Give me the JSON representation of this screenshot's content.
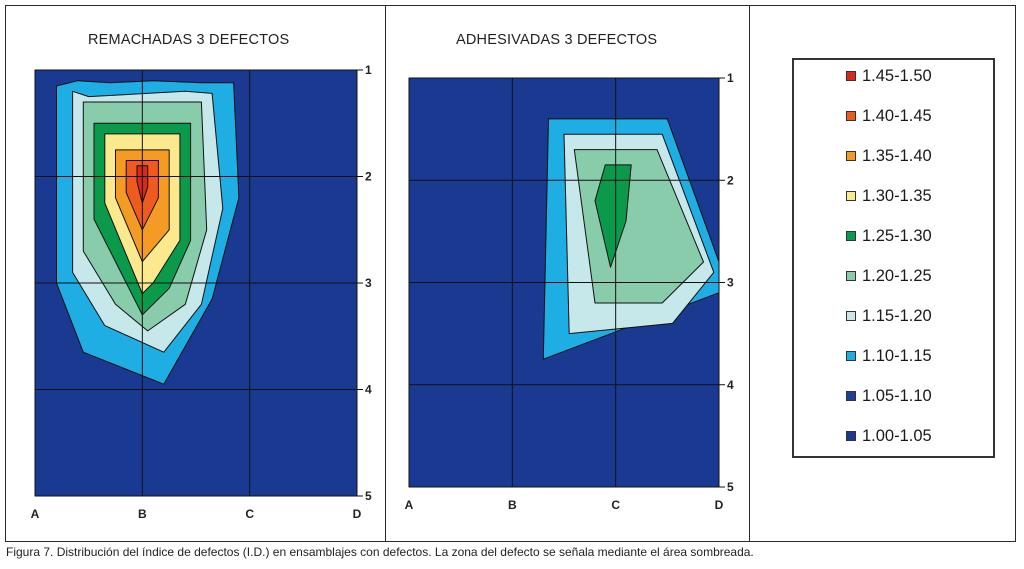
{
  "chart_data": [
    {
      "type": "contour",
      "title": "REMACHADAS 3 DEFECTOS",
      "x_ticks": [
        "A",
        "B",
        "C",
        "D"
      ],
      "y_ticks": [
        "1",
        "2",
        "3",
        "4",
        "5"
      ],
      "xlim": [
        "A",
        "D"
      ],
      "ylim": [
        "1",
        "5"
      ],
      "grid": true,
      "contours": [
        {
          "level": "1.05-1.10",
          "x": [
            0.0,
            3.0,
            3.0,
            0.0,
            0.0,
            1.0,
            0.0
          ],
          "y": [
            1.0,
            1.0,
            5.0,
            5.0,
            4.0,
            4.0,
            4.0
          ]
        },
        {
          "level": "1.10-1.15",
          "x": [
            0.2,
            0.4,
            0.7,
            1.1,
            1.55,
            1.85,
            1.9,
            1.65,
            1.2,
            0.45,
            0.2
          ],
          "y": [
            1.15,
            1.1,
            1.12,
            1.1,
            1.12,
            1.12,
            2.2,
            3.15,
            3.95,
            3.65,
            3.0
          ]
        },
        {
          "level": "1.15-1.20",
          "x": [
            0.35,
            0.5,
            1.4,
            1.65,
            1.75,
            1.55,
            1.2,
            0.65,
            0.35
          ],
          "y": [
            1.2,
            1.25,
            1.2,
            1.22,
            2.3,
            3.2,
            3.65,
            3.4,
            2.9
          ]
        },
        {
          "level": "1.20-1.25",
          "x": [
            0.45,
            1.55,
            1.6,
            1.4,
            1.05,
            0.75,
            0.45
          ],
          "y": [
            1.3,
            1.3,
            2.5,
            3.2,
            3.45,
            3.2,
            2.7
          ]
        },
        {
          "level": "1.25-1.30",
          "x": [
            0.55,
            1.45,
            1.45,
            1.25,
            1.0,
            0.55
          ],
          "y": [
            1.5,
            1.5,
            2.6,
            3.05,
            3.3,
            2.4
          ]
        },
        {
          "level": "1.30-1.35",
          "x": [
            0.65,
            1.35,
            1.35,
            1.1,
            1.0,
            0.65
          ],
          "y": [
            1.6,
            1.6,
            2.6,
            3.0,
            3.1,
            2.25
          ]
        },
        {
          "level": "1.35-1.40",
          "x": [
            0.75,
            1.25,
            1.25,
            1.0,
            0.75
          ],
          "y": [
            1.75,
            1.75,
            2.5,
            2.8,
            2.2
          ]
        },
        {
          "level": "1.40-1.45",
          "x": [
            0.85,
            1.15,
            1.15,
            1.0,
            0.85
          ],
          "y": [
            1.85,
            1.85,
            2.2,
            2.5,
            2.15
          ]
        },
        {
          "level": "1.45-1.50",
          "x": [
            0.95,
            1.05,
            1.05,
            1.0,
            0.95
          ],
          "y": [
            1.9,
            1.9,
            2.1,
            2.25,
            2.05
          ]
        }
      ]
    },
    {
      "type": "contour",
      "title": "ADHESIVADAS 3 DEFECTOS",
      "x_ticks": [
        "A",
        "B",
        "C",
        "D"
      ],
      "y_ticks": [
        "1",
        "2",
        "3",
        "4",
        "5"
      ],
      "xlim": [
        "A",
        "D"
      ],
      "ylim": [
        "1",
        "5"
      ],
      "grid": true,
      "contours": [
        {
          "level": "1.05-1.10",
          "x": [
            0.0,
            3.0,
            3.0,
            0.0
          ],
          "y": [
            1.0,
            1.0,
            5.0,
            5.0
          ]
        },
        {
          "level": "1.10-1.15",
          "x": [
            1.35,
            2.5,
            3.0,
            3.0,
            1.3
          ],
          "y": [
            1.4,
            1.4,
            2.8,
            3.1,
            3.75
          ]
        },
        {
          "level": "1.15-1.20",
          "x": [
            1.5,
            2.45,
            2.95,
            2.55,
            1.55
          ],
          "y": [
            1.55,
            1.55,
            2.9,
            3.4,
            3.5
          ]
        },
        {
          "level": "1.20-1.25",
          "x": [
            1.6,
            2.4,
            2.85,
            2.45,
            1.8
          ],
          "y": [
            1.7,
            1.7,
            2.8,
            3.2,
            3.2
          ]
        },
        {
          "level": "1.25-1.30",
          "x": [
            1.9,
            2.15,
            2.1,
            1.95,
            1.8
          ],
          "y": [
            1.85,
            1.85,
            2.4,
            2.85,
            2.2
          ]
        }
      ]
    }
  ],
  "legend": {
    "items": [
      {
        "label": "1.45-1.50",
        "color": "#d8291b"
      },
      {
        "label": "1.40-1.45",
        "color": "#ef5a1f"
      },
      {
        "label": "1.35-1.40",
        "color": "#f39b25"
      },
      {
        "label": "1.30-1.35",
        "color": "#fde98d"
      },
      {
        "label": "1.25-1.30",
        "color": "#0b9a4b"
      },
      {
        "label": "1.20-1.25",
        "color": "#88ccab"
      },
      {
        "label": "1.15-1.20",
        "color": "#c6e8ea"
      },
      {
        "label": "1.10-1.15",
        "color": "#1faee4"
      },
      {
        "label": "1.05-1.10",
        "color": "#1e3f99"
      },
      {
        "label": "1.00-1.05",
        "color": "#1a3a92"
      }
    ]
  },
  "caption": "Figura 7. Distribución del índice de defectos (I.D.) en ensamblajes con defectos. La zona del defecto se señala mediante el área sombreada."
}
